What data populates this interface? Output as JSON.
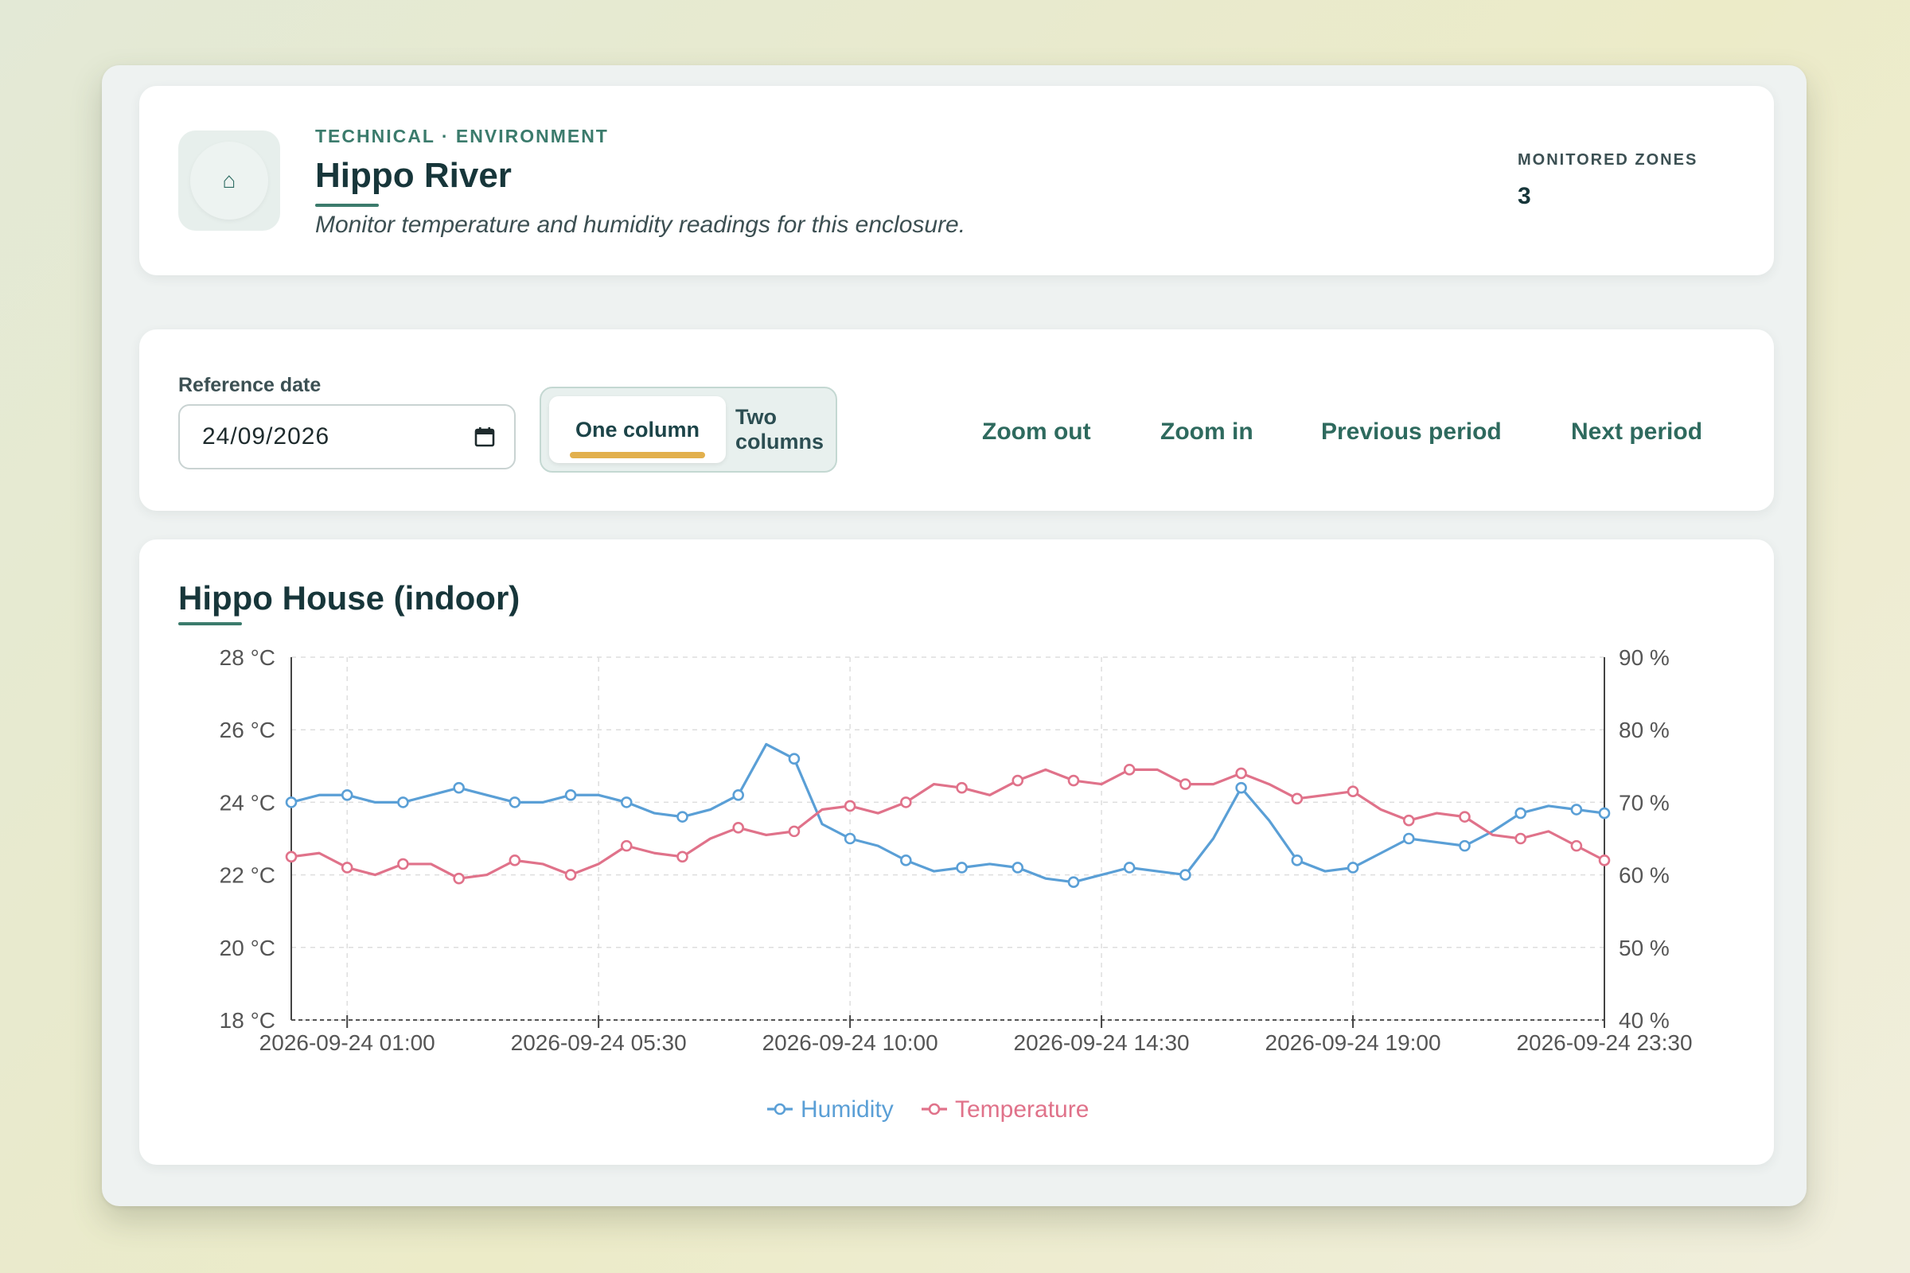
{
  "header": {
    "eyebrow": "TECHNICAL · ENVIRONMENT",
    "title": "Hippo River",
    "subtitle": "Monitor temperature and humidity readings for this enclosure.",
    "zones_label": "MONITORED ZONES",
    "zones_value": "3",
    "icon": "home-icon"
  },
  "controls": {
    "date_label": "Reference date",
    "date_value": "24/09/2026",
    "layout_options": [
      "One column",
      "Two columns"
    ],
    "layout_selected": "One column",
    "zoom_out": "Zoom out",
    "zoom_in": "Zoom in",
    "previous": "Previous period",
    "next": "Next period"
  },
  "colors": {
    "accent": "#3b7b6c",
    "humidity": "#5a9fd6",
    "temperature": "#e0728a",
    "selected_bar": "#e2b04d"
  },
  "chart_data": {
    "type": "line",
    "title": "Hippo House (indoor)",
    "left_axis": {
      "ticks": [
        "28 °C",
        "26 °C",
        "24 °C",
        "22 °C",
        "20 °C",
        "18 °C"
      ],
      "ylim": [
        18,
        28
      ]
    },
    "right_axis": {
      "ticks": [
        "90 %",
        "80 %",
        "70 %",
        "60 %",
        "50 %",
        "40 %"
      ],
      "ylim": [
        40,
        90
      ]
    },
    "x_tick_labels": [
      "2026-09-24 01:00",
      "2026-09-24 05:30",
      "2026-09-24 10:00",
      "2026-09-24 14:30",
      "2026-09-24 19:00",
      "2026-09-24 23:30"
    ],
    "x_range_hours": [
      0,
      23.5
    ],
    "x_tick_hours": [
      1,
      5.5,
      10,
      14.5,
      19,
      23.5
    ],
    "grid": true,
    "legend_position": "bottom-center",
    "series": [
      {
        "name": "Humidity",
        "axis": "right",
        "color": "#5a9fd6",
        "x": [
          0,
          0.5,
          1,
          1.5,
          2,
          2.5,
          3,
          3.5,
          4,
          4.5,
          5,
          5.5,
          6,
          6.5,
          7,
          7.5,
          8,
          8.5,
          9,
          9.5,
          10,
          10.5,
          11,
          11.5,
          12,
          12.5,
          13,
          13.5,
          14,
          14.5,
          15,
          15.5,
          16,
          16.5,
          17,
          17.5,
          18,
          18.5,
          19,
          19.5,
          20,
          20.5,
          21,
          21.5,
          22,
          22.5,
          23,
          23.5
        ],
        "values": [
          70,
          71,
          71,
          70,
          70,
          71,
          72,
          71,
          70,
          70,
          71,
          71,
          70,
          68.5,
          68,
          69,
          71,
          78,
          76,
          67,
          65,
          64,
          62,
          60.5,
          61,
          61.5,
          61,
          59.5,
          59,
          60,
          61,
          60.5,
          60,
          65,
          72,
          67.5,
          62,
          60.5,
          61,
          63,
          65,
          64.5,
          64,
          66,
          68.5,
          69.5,
          69,
          68.5
        ]
      },
      {
        "name": "Temperature",
        "axis": "left",
        "color": "#e0728a",
        "x": [
          0,
          0.5,
          1,
          1.5,
          2,
          2.5,
          3,
          3.5,
          4,
          4.5,
          5,
          5.5,
          6,
          6.5,
          7,
          7.5,
          8,
          8.5,
          9,
          9.5,
          10,
          10.5,
          11,
          11.5,
          12,
          12.5,
          13,
          13.5,
          14,
          14.5,
          15,
          15.5,
          16,
          16.5,
          17,
          17.5,
          18,
          18.5,
          19,
          19.5,
          20,
          20.5,
          21,
          21.5,
          22,
          22.5,
          23,
          23.5
        ],
        "values": [
          22.5,
          22.6,
          22.2,
          22.0,
          22.3,
          22.3,
          21.9,
          22.0,
          22.4,
          22.3,
          22.0,
          22.3,
          22.8,
          22.6,
          22.5,
          23.0,
          23.3,
          23.1,
          23.2,
          23.8,
          23.9,
          23.7,
          24.0,
          24.5,
          24.4,
          24.2,
          24.6,
          24.9,
          24.6,
          24.5,
          24.9,
          24.9,
          24.5,
          24.5,
          24.8,
          24.5,
          24.1,
          24.2,
          24.3,
          23.8,
          23.5,
          23.7,
          23.6,
          23.1,
          23.0,
          23.2,
          22.8,
          22.4
        ]
      }
    ],
    "marker_every": 2
  }
}
